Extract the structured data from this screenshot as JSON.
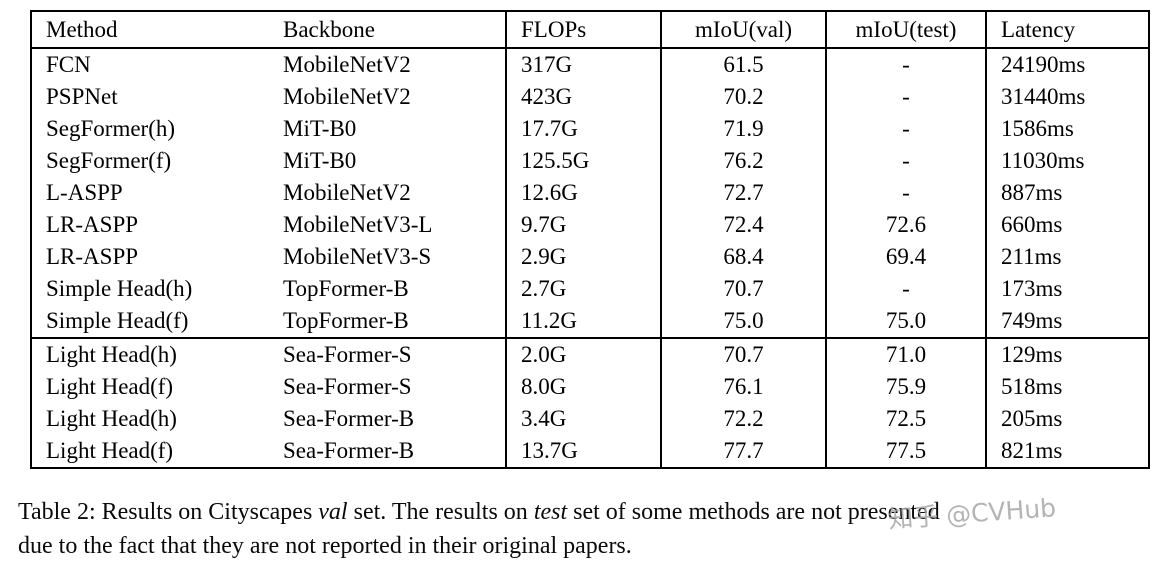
{
  "table": {
    "columns": [
      {
        "label": "Method",
        "align": "left"
      },
      {
        "label": "Backbone",
        "align": "left"
      },
      {
        "label": "FLOPs",
        "align": "left"
      },
      {
        "label": "mIoU(val)",
        "align": "center"
      },
      {
        "label": "mIoU(test)",
        "align": "center"
      },
      {
        "label": "Latency",
        "align": "left"
      }
    ],
    "groups": [
      {
        "rows": [
          {
            "cells": [
              "FCN",
              "MobileNetV2",
              "317G",
              "61.5",
              "-",
              "24190ms"
            ],
            "backbone_bold": false
          },
          {
            "cells": [
              "PSPNet",
              "MobileNetV2",
              "423G",
              "70.2",
              "-",
              "31440ms"
            ],
            "backbone_bold": false
          },
          {
            "cells": [
              "SegFormer(h)",
              "MiT-B0",
              "17.7G",
              "71.9",
              "-",
              "1586ms"
            ],
            "backbone_bold": false
          },
          {
            "cells": [
              "SegFormer(f)",
              "MiT-B0",
              "125.5G",
              "76.2",
              "-",
              "11030ms"
            ],
            "backbone_bold": false
          },
          {
            "cells": [
              "L-ASPP",
              "MobileNetV2",
              "12.6G",
              "72.7",
              "-",
              "887ms"
            ],
            "backbone_bold": false
          },
          {
            "cells": [
              "LR-ASPP",
              "MobileNetV3-L",
              "9.7G",
              "72.4",
              "72.6",
              "660ms"
            ],
            "backbone_bold": false
          },
          {
            "cells": [
              "LR-ASPP",
              "MobileNetV3-S",
              "2.9G",
              "68.4",
              "69.4",
              "211ms"
            ],
            "backbone_bold": false
          },
          {
            "cells": [
              "Simple Head(h)",
              "TopFormer-B",
              "2.7G",
              "70.7",
              "-",
              "173ms"
            ],
            "backbone_bold": false
          },
          {
            "cells": [
              "Simple Head(f)",
              "TopFormer-B",
              "11.2G",
              "75.0",
              "75.0",
              "749ms"
            ],
            "backbone_bold": false
          }
        ]
      },
      {
        "rows": [
          {
            "cells": [
              "Light Head(h)",
              "Sea-Former-S",
              "2.0G",
              "70.7",
              "71.0",
              "129ms"
            ],
            "backbone_bold": true
          },
          {
            "cells": [
              "Light Head(f)",
              "Sea-Former-S",
              "8.0G",
              "76.1",
              "75.9",
              "518ms"
            ],
            "backbone_bold": true
          },
          {
            "cells": [
              "Light Head(h)",
              "Sea-Former-B",
              "3.4G",
              "72.2",
              "72.5",
              "205ms"
            ],
            "backbone_bold": true
          },
          {
            "cells": [
              "Light Head(f)",
              "Sea-Former-B",
              "13.7G",
              "77.7",
              "77.5",
              "821ms"
            ],
            "backbone_bold": true
          }
        ]
      }
    ]
  },
  "caption": {
    "lines": [
      [
        {
          "text": "Table 2: Results on Cityscapes ",
          "italic": false
        },
        {
          "text": "val",
          "italic": true
        },
        {
          "text": " set.  The results on ",
          "italic": false
        },
        {
          "text": "test",
          "italic": true
        },
        {
          "text": " set of some methods are not presented",
          "italic": false
        }
      ],
      [
        {
          "text": "due to the fact that they are not reported in their original papers.",
          "italic": false
        }
      ]
    ]
  },
  "watermark": "知乎 @CVHub"
}
